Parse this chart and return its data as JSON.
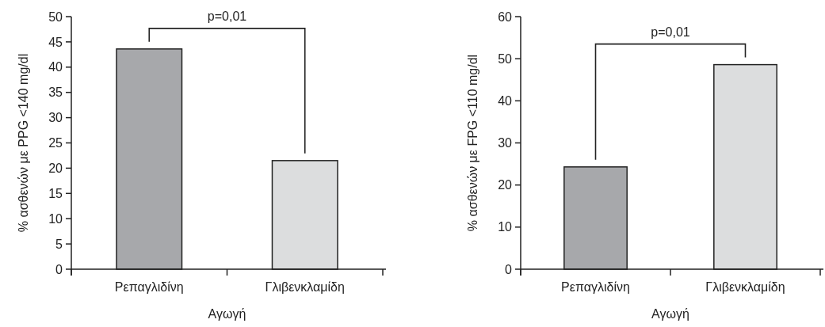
{
  "chart_data": [
    {
      "type": "bar",
      "categories": [
        "Ρεπαγλιδίνη",
        "Γλιβενκλαμίδη"
      ],
      "values": [
        43.6,
        21.5
      ],
      "colors": [
        "#a7a8ab",
        "#dcddde"
      ],
      "xlabel": "Αγωγή",
      "ylabel": "% ασθενών με PPG <140 mg/dl",
      "ylim": [
        0,
        50
      ],
      "yticks": [
        0,
        5,
        10,
        15,
        20,
        25,
        30,
        35,
        40,
        45,
        50
      ],
      "annotations": [
        "p=0,01"
      ]
    },
    {
      "type": "bar",
      "categories": [
        "Ρεπαγλιδίνη",
        "Γλιβενκλαμίδη"
      ],
      "values": [
        24.3,
        48.6
      ],
      "colors": [
        "#a7a8ab",
        "#dcddde"
      ],
      "xlabel": "Αγωγή",
      "ylabel": "% ασθενών με FPG <110 mg/dl",
      "ylim": [
        0,
        60
      ],
      "yticks": [
        0,
        10,
        20,
        30,
        40,
        50,
        60
      ],
      "annotations": [
        "p=0,01"
      ]
    }
  ]
}
